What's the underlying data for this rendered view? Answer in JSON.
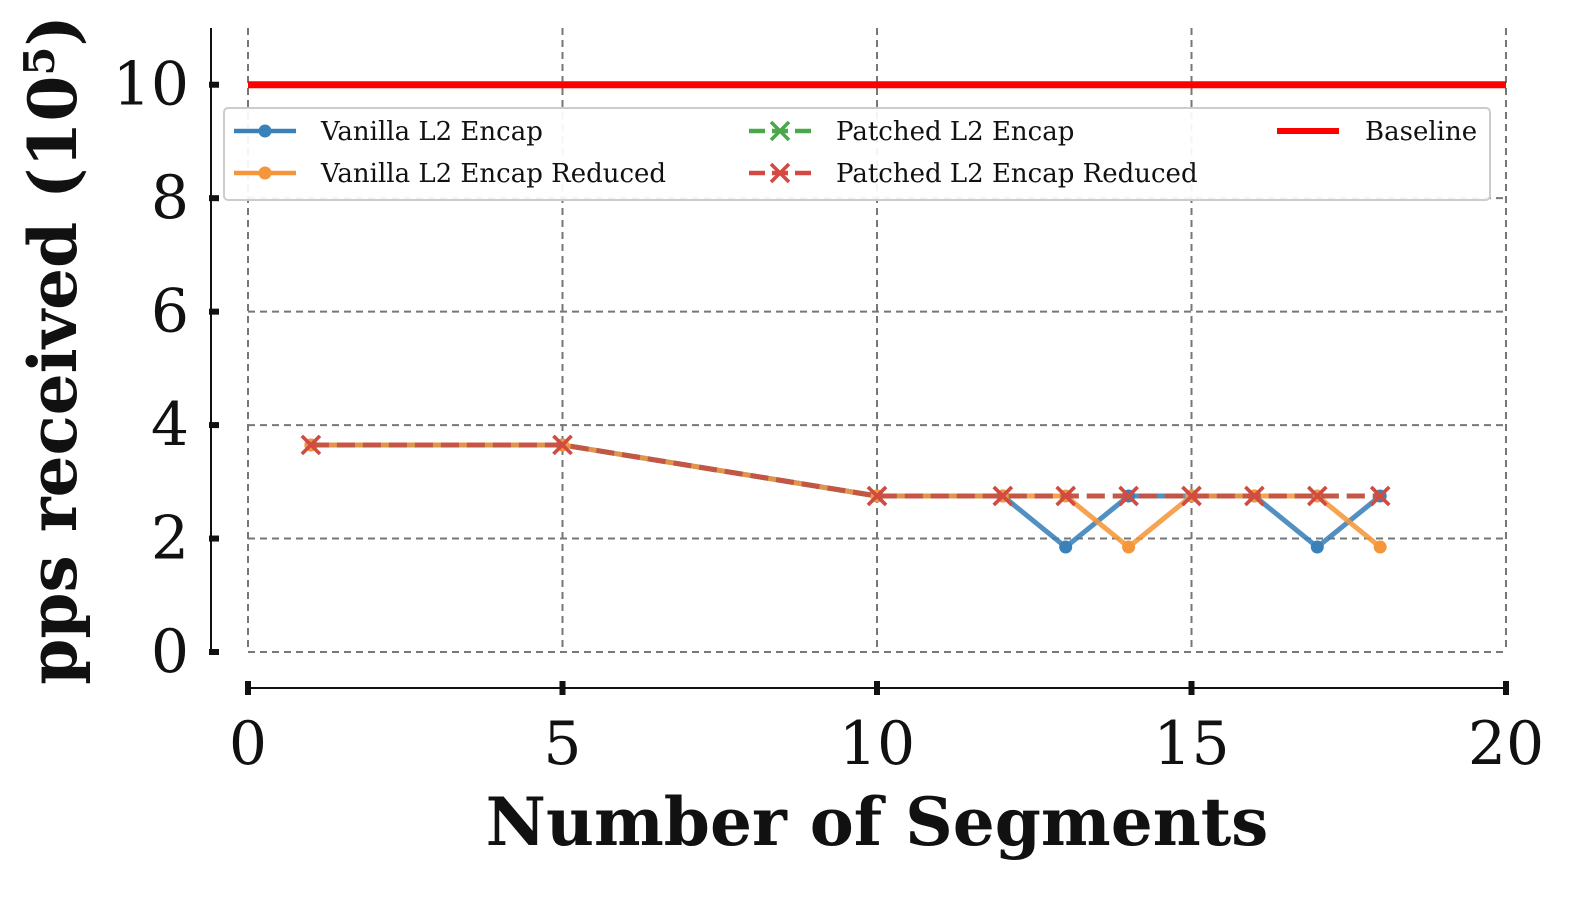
{
  "chart_data": {
    "type": "line",
    "title": "",
    "xlabel": "Number of Segments",
    "ylabel": "pps received (10",
    "ylabel_exponent": "5",
    "ylabel_close": ")",
    "xlim": [
      0,
      20
    ],
    "ylim": [
      0,
      11
    ],
    "xticks": [
      0,
      5,
      10,
      15,
      20
    ],
    "yticks": [
      0,
      2,
      4,
      6,
      8,
      10
    ],
    "xtick_labels": [
      "0",
      "5",
      "10",
      "15",
      "20"
    ],
    "ytick_labels": [
      "0",
      "2",
      "4",
      "6",
      "8",
      "10"
    ],
    "grid": true,
    "legend_position": "top",
    "series": [
      {
        "name": "Vanilla L2 Encap",
        "color": "#3a80b9",
        "marker": "dot",
        "linestyle": "solid",
        "x": [
          1,
          5,
          10,
          12,
          13,
          14,
          15,
          16,
          17,
          18
        ],
        "y": [
          3.65,
          3.65,
          2.75,
          2.75,
          1.85,
          2.75,
          2.75,
          2.75,
          1.85,
          2.75
        ]
      },
      {
        "name": "Vanilla L2 Encap Reduced",
        "color": "#f5963a",
        "marker": "dot",
        "linestyle": "solid",
        "x": [
          1,
          5,
          10,
          12,
          13,
          14,
          15,
          16,
          17,
          18
        ],
        "y": [
          3.65,
          3.65,
          2.75,
          2.75,
          2.75,
          1.85,
          2.75,
          2.75,
          2.75,
          1.85
        ]
      },
      {
        "name": "Patched L2 Encap",
        "color": "#4aa84a",
        "marker": "x",
        "linestyle": "dashed",
        "x": [
          1,
          5,
          10,
          12,
          13,
          14,
          15,
          16,
          17,
          18
        ],
        "y": [
          3.65,
          3.65,
          2.75,
          2.75,
          2.75,
          2.75,
          2.75,
          2.75,
          2.75,
          2.75
        ]
      },
      {
        "name": "Patched L2 Encap Reduced",
        "color": "#d44a43",
        "marker": "x",
        "linestyle": "dashed",
        "x": [
          1,
          5,
          10,
          12,
          13,
          14,
          15,
          16,
          17,
          18
        ],
        "y": [
          3.65,
          3.65,
          2.75,
          2.75,
          2.75,
          2.75,
          2.75,
          2.75,
          2.75,
          2.75
        ]
      },
      {
        "name": "Baseline",
        "color": "#ff0000",
        "marker": "none",
        "linestyle": "solid",
        "x": [
          0,
          20
        ],
        "y": [
          10,
          10
        ]
      }
    ]
  }
}
